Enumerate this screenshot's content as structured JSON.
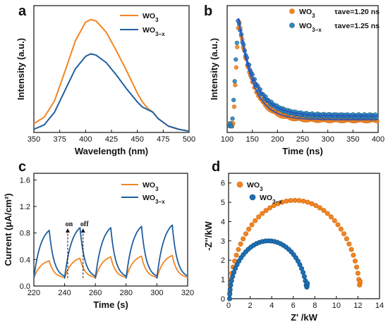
{
  "chart_data": [
    {
      "panel": "a",
      "type": "line",
      "xlabel": "Wavelength (nm)",
      "ylabel": "Intensity (a.u.)",
      "xlim": [
        350,
        500
      ],
      "xticks": [
        350,
        375,
        400,
        425,
        450,
        475,
        500
      ],
      "y_tick_labels": false,
      "legend_position": "top-right",
      "series": [
        {
          "name": "WO3",
          "color": "#F28522",
          "x": [
            350,
            360,
            370,
            380,
            390,
            400,
            405,
            410,
            420,
            430,
            440,
            450,
            455,
            460,
            465,
            470,
            480,
            490,
            500
          ],
          "y": [
            0.07,
            0.12,
            0.25,
            0.48,
            0.72,
            0.87,
            0.89,
            0.88,
            0.79,
            0.64,
            0.48,
            0.31,
            0.24,
            0.19,
            0.16,
            0.11,
            0.05,
            0.025,
            0.01
          ]
        },
        {
          "name": "WO3−x",
          "color": "#1F5FA0",
          "x": [
            350,
            360,
            370,
            380,
            390,
            400,
            405,
            410,
            420,
            430,
            440,
            450,
            455,
            460,
            465,
            470,
            480,
            490,
            500
          ],
          "y": [
            0.025,
            0.06,
            0.16,
            0.33,
            0.5,
            0.6,
            0.62,
            0.61,
            0.55,
            0.45,
            0.34,
            0.24,
            0.2,
            0.18,
            0.16,
            0.11,
            0.05,
            0.025,
            0.01
          ]
        }
      ]
    },
    {
      "panel": "b",
      "type": "scatter",
      "xlabel": "Time (ns)",
      "ylabel": "Intensity (a.u.)",
      "xlim": [
        100,
        400
      ],
      "xticks": [
        100,
        150,
        200,
        250,
        300,
        350,
        400
      ],
      "y_tick_labels": false,
      "legend_position": "top-right",
      "legend_notes": [
        "τave=1.20 ns",
        "τave=1.25 ns"
      ],
      "fit_color": "#2A53C8",
      "series": [
        {
          "name": "WO3",
          "color": "#F28522",
          "rise": 112,
          "peak": 123,
          "tau": 28,
          "base": 0.1
        },
        {
          "name": "WO3−x",
          "color": "#2E86C1",
          "rise": 110,
          "peak": 122,
          "tau": 32,
          "base": 0.13
        }
      ]
    },
    {
      "panel": "c",
      "type": "line",
      "xlabel": "Time (s)",
      "ylabel": "Current (μA/cm²)",
      "xlim": [
        220,
        320
      ],
      "ylim": [
        0,
        1.7
      ],
      "xticks": [
        220,
        240,
        260,
        280,
        300,
        320
      ],
      "yticks": [
        "0.0",
        "0.4",
        "0.8",
        "1.2",
        "1.6"
      ],
      "legend_position": "top-right",
      "annotations": [
        {
          "text": "on",
          "x": 242,
          "y": 0.87
        },
        {
          "text": "off",
          "x": 252,
          "y": 0.87
        }
      ],
      "cycles_on_off": [
        [
          220,
          230
        ],
        [
          240,
          250
        ],
        [
          260,
          270
        ],
        [
          280,
          290
        ],
        [
          300,
          310
        ]
      ],
      "series": [
        {
          "name": "WO3",
          "color": "#F28522",
          "dark": 0.12,
          "peaks": [
            0.38,
            0.42,
            0.44,
            0.45,
            0.46
          ]
        },
        {
          "name": "WO3−x",
          "color": "#1F5FA0",
          "dark": 0.12,
          "peaks": [
            0.84,
            0.88,
            0.88,
            0.9,
            0.92
          ]
        }
      ]
    },
    {
      "panel": "d",
      "type": "scatter",
      "xlabel": "Z' /kW",
      "ylabel": "-Z''/kW",
      "xlim": [
        0,
        14
      ],
      "ylim": [
        0,
        6.5
      ],
      "xticks": [
        0,
        2,
        4,
        6,
        8,
        10,
        12,
        14
      ],
      "yticks": [
        0,
        1,
        2,
        3,
        4,
        5,
        6
      ],
      "legend_position": "top-left",
      "series": [
        {
          "name": "WO3",
          "color": "#F28522",
          "z_start": 0.1,
          "z_end": 12.2,
          "peak_z": 6.0,
          "peak": 5.1,
          "end_im": 0.9
        },
        {
          "name": "WO3−x",
          "color": "#1E6FB5",
          "z_start": 0.1,
          "z_end": 7.3,
          "peak_z": 3.5,
          "peak": 3.0,
          "end_im": 0.8
        }
      ]
    }
  ]
}
